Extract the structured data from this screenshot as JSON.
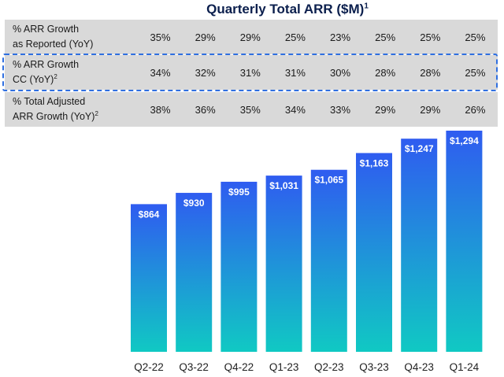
{
  "title": "Quarterly Total ARR ($M)",
  "title_sup": "1",
  "table": {
    "rows": [
      {
        "label_line1": "% ARR Growth",
        "label_line2": "as Reported (YoY)",
        "label_sup": "",
        "values": [
          "35%",
          "29%",
          "29%",
          "25%",
          "23%",
          "25%",
          "25%",
          "25%"
        ]
      },
      {
        "label_line1": "% ARR Growth",
        "label_line2": "CC (YoY)",
        "label_sup": "2",
        "values": [
          "34%",
          "32%",
          "31%",
          "31%",
          "30%",
          "28%",
          "28%",
          "25%"
        ]
      },
      {
        "label_line1": "% Total Adjusted",
        "label_line2": "ARR Growth (YoY)",
        "label_sup": "2",
        "values": [
          "38%",
          "36%",
          "35%",
          "34%",
          "33%",
          "29%",
          "29%",
          "26%"
        ]
      }
    ]
  },
  "colors": {
    "bar_top": "#2f5cf0",
    "bar_bottom": "#10c9c3",
    "highlight_border": "#2f6fe0",
    "table_bg": "#d9d9d9"
  },
  "chart_data": {
    "type": "bar",
    "title": "Quarterly Total ARR ($M)",
    "categories": [
      "Q2-22",
      "Q3-22",
      "Q4-22",
      "Q1-23",
      "Q2-23",
      "Q3-23",
      "Q4-23",
      "Q1-24"
    ],
    "values": [
      864,
      930,
      995,
      1031,
      1065,
      1163,
      1247,
      1294
    ],
    "value_labels": [
      "$864",
      "$930",
      "$995",
      "$1,031",
      "$1,065",
      "$1,163",
      "$1,247",
      "$1,294"
    ],
    "xlabel": "",
    "ylabel": "",
    "ylim": [
      0,
      1294
    ],
    "grid": false,
    "legend": "none"
  }
}
